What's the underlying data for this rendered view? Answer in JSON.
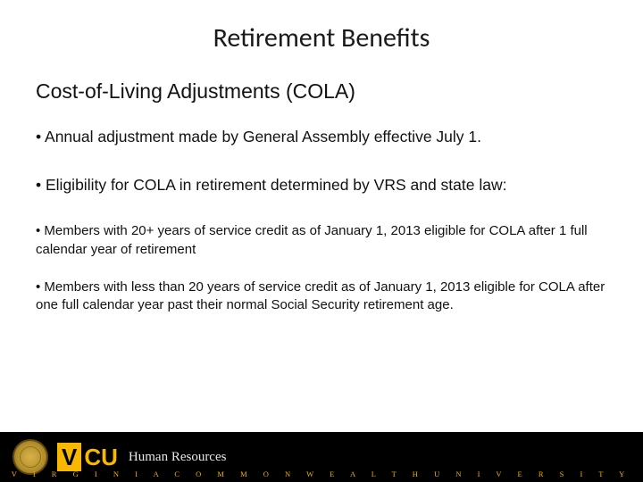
{
  "title": "Retirement Benefits",
  "subtitle": "Cost-of-Living Adjustments (COLA)",
  "bullets_large": [
    "Annual adjustment made by General Assembly effective July 1.",
    "Eligibility for COLA in retirement determined by VRS and state law:"
  ],
  "bullets_small": [
    "Members with 20+ years of service credit as of January 1, 2013 eligible for COLA after 1 full calendar year of retirement",
    "Members with less than 20 years of service credit as of January 1, 2013 eligible for COLA after one full calendar year past their normal Social Security retirement age."
  ],
  "footer": {
    "logo_v": "V",
    "logo_cu": "CU",
    "subunit": "Human Resources",
    "tagline": "V I R G I N I A   C O M M O N W E A L T H   U N I V E R S I T Y"
  },
  "colors": {
    "background": "#ffffff",
    "text": "#111111",
    "footer_bg": "#000000",
    "accent_gold": "#f8b800",
    "tagline_gold": "#f0b400"
  }
}
